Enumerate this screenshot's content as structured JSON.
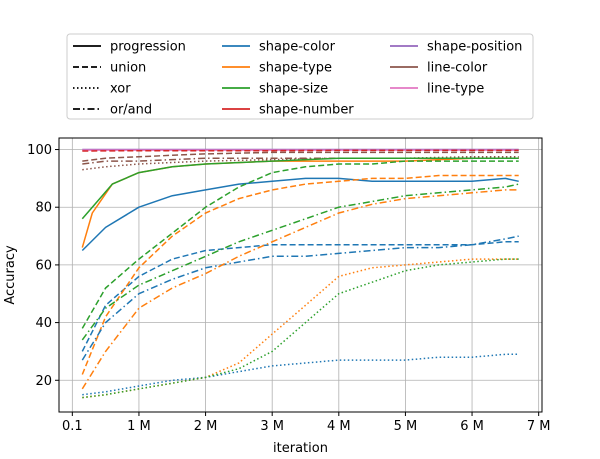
{
  "chart_data": {
    "type": "line",
    "title": "",
    "xlabel": "iteration",
    "ylabel": "Accuracy",
    "xlim": [
      -0.2,
      7.05
    ],
    "ylim": [
      9,
      104
    ],
    "xticks": [
      0,
      1,
      2,
      3,
      4,
      5,
      6,
      7
    ],
    "xtick_labels": [
      "0.1",
      "1 M",
      "2 M",
      "3 M",
      "4 M",
      "5 M",
      "6 M",
      "7 M"
    ],
    "yticks": [
      20,
      40,
      60,
      80,
      100
    ],
    "ytick_labels": [
      "20",
      "40",
      "60",
      "80",
      "100"
    ],
    "grid": true,
    "legend_position": "above-plot",
    "legend_styles": [
      {
        "label": "progression",
        "dash": "solid"
      },
      {
        "label": "union",
        "dash": "dashed"
      },
      {
        "label": "xor",
        "dash": "dotted"
      },
      {
        "label": "or/and",
        "dash": "dashdot"
      }
    ],
    "legend_attributes": [
      {
        "label": "shape-color",
        "color": "#1f77b4"
      },
      {
        "label": "shape-type",
        "color": "#ff7f0e"
      },
      {
        "label": "shape-size",
        "color": "#2ca02c"
      },
      {
        "label": "shape-number",
        "color": "#d62728"
      },
      {
        "label": "shape-position",
        "color": "#9467bd"
      },
      {
        "label": "line-color",
        "color": "#8c564b"
      },
      {
        "label": "line-type",
        "color": "#e377c2"
      }
    ],
    "series": [
      {
        "attribute": "shape-position",
        "style": "solid",
        "color": "#9467bd",
        "x": [
          0.15,
          1,
          2,
          3,
          4,
          5,
          6,
          6.7
        ],
        "y": [
          100,
          100,
          100,
          100,
          100,
          100,
          100,
          100
        ]
      },
      {
        "attribute": "line-type",
        "style": "solid",
        "color": "#e377c2",
        "x": [
          0.15,
          1,
          2,
          3,
          4,
          5,
          6,
          6.7
        ],
        "y": [
          99.8,
          99.8,
          99.8,
          99.8,
          99.8,
          99.8,
          99.8,
          99.8
        ]
      },
      {
        "attribute": "shape-number",
        "style": "dashed",
        "color": "#d62728",
        "x": [
          0.15,
          1,
          2,
          3,
          4,
          5,
          6,
          6.7
        ],
        "y": [
          99.5,
          99.6,
          99.6,
          99.6,
          99.7,
          99.7,
          99.7,
          99.7
        ]
      },
      {
        "attribute": "line-color",
        "style": "dashed",
        "color": "#8c564b",
        "x": [
          0.15,
          0.5,
          1,
          1.5,
          2,
          3,
          4,
          5,
          6,
          6.7
        ],
        "y": [
          96,
          97,
          97.5,
          98,
          98.5,
          99,
          99,
          99,
          99,
          99
        ]
      },
      {
        "attribute": "line-color",
        "style": "dotted",
        "color": "#8c564b",
        "x": [
          0.15,
          0.5,
          1,
          1.5,
          2,
          3,
          4,
          5,
          6,
          6.7
        ],
        "y": [
          93,
          94,
          95,
          95.5,
          96,
          96.5,
          97,
          97,
          97.5,
          97.5
        ]
      },
      {
        "attribute": "line-color",
        "style": "dashdot",
        "color": "#8c564b",
        "x": [
          0.15,
          0.5,
          1,
          1.5,
          2,
          3,
          4,
          5,
          6,
          6.7
        ],
        "y": [
          95,
          96,
          96,
          96.5,
          97,
          97,
          97,
          97,
          97,
          97
        ]
      },
      {
        "attribute": "shape-color",
        "style": "solid",
        "color": "#1f77b4",
        "x": [
          0.15,
          0.5,
          1,
          1.5,
          2,
          2.5,
          3,
          3.5,
          4,
          4.5,
          5,
          5.5,
          6,
          6.5,
          6.7
        ],
        "y": [
          65,
          73,
          80,
          84,
          86,
          88,
          89,
          90,
          90,
          89,
          89,
          89,
          89,
          90,
          89
        ]
      },
      {
        "attribute": "shape-type",
        "style": "solid",
        "color": "#ff7f0e",
        "x": [
          0.15,
          0.3,
          0.6,
          1,
          1.5,
          2,
          3,
          4,
          5,
          6,
          6.7
        ],
        "y": [
          66,
          78,
          88,
          92,
          94,
          95,
          96,
          96,
          96,
          97,
          97
        ]
      },
      {
        "attribute": "shape-size",
        "style": "solid",
        "color": "#2ca02c",
        "x": [
          0.15,
          0.3,
          0.6,
          1,
          1.5,
          2,
          3,
          4,
          5,
          6,
          6.7
        ],
        "y": [
          76,
          80,
          88,
          92,
          94,
          95,
          96,
          97,
          97,
          97,
          97
        ]
      },
      {
        "attribute": "shape-color",
        "style": "dashed",
        "color": "#1f77b4",
        "x": [
          0.15,
          0.5,
          1,
          1.5,
          2,
          2.5,
          3,
          3.5,
          4,
          4.5,
          5,
          5.5,
          6,
          6.5,
          6.7
        ],
        "y": [
          30,
          46,
          56,
          62,
          65,
          66,
          67,
          67,
          67,
          67,
          67,
          67,
          67,
          68,
          68
        ]
      },
      {
        "attribute": "shape-type",
        "style": "dashed",
        "color": "#ff7f0e",
        "x": [
          0.15,
          0.5,
          1,
          1.5,
          2,
          2.5,
          3,
          3.5,
          4,
          4.5,
          5,
          5.5,
          6,
          6.5,
          6.7
        ],
        "y": [
          22,
          42,
          59,
          70,
          78,
          83,
          86,
          88,
          89,
          90,
          90,
          91,
          91,
          91,
          91
        ]
      },
      {
        "attribute": "shape-size",
        "style": "dashed",
        "color": "#2ca02c",
        "x": [
          0.15,
          0.5,
          1,
          1.5,
          2,
          2.5,
          3,
          3.5,
          4,
          4.5,
          5,
          5.5,
          6,
          6.5,
          6.7
        ],
        "y": [
          38,
          52,
          62,
          71,
          80,
          87,
          92,
          94,
          95,
          95,
          96,
          96,
          96,
          96,
          96
        ]
      },
      {
        "attribute": "shape-color",
        "style": "dotted",
        "color": "#1f77b4",
        "x": [
          0.15,
          0.5,
          1,
          1.5,
          2,
          2.5,
          3,
          3.5,
          4,
          4.5,
          5,
          5.5,
          6,
          6.5,
          6.7
        ],
        "y": [
          15,
          16,
          18,
          20,
          21,
          23,
          25,
          26,
          27,
          27,
          27,
          28,
          28,
          29,
          29
        ]
      },
      {
        "attribute": "shape-type",
        "style": "dotted",
        "color": "#ff7f0e",
        "x": [
          0.15,
          0.5,
          1,
          1.5,
          2,
          2.5,
          3,
          3.5,
          4,
          4.5,
          5,
          5.5,
          6,
          6.5,
          6.7
        ],
        "y": [
          14,
          15,
          17,
          19,
          21,
          26,
          36,
          46,
          56,
          59,
          60,
          61,
          62,
          62,
          62
        ]
      },
      {
        "attribute": "shape-size",
        "style": "dotted",
        "color": "#2ca02c",
        "x": [
          0.15,
          0.5,
          1,
          1.5,
          2,
          2.5,
          3,
          3.5,
          4,
          4.5,
          5,
          5.5,
          6,
          6.5,
          6.7
        ],
        "y": [
          14,
          15,
          17,
          19,
          21,
          24,
          30,
          40,
          50,
          54,
          58,
          60,
          61,
          62,
          62
        ]
      },
      {
        "attribute": "shape-color",
        "style": "dashdot",
        "color": "#1f77b4",
        "x": [
          0.15,
          0.5,
          1,
          1.5,
          2,
          2.5,
          3,
          3.5,
          4,
          4.5,
          5,
          5.5,
          6,
          6.5,
          6.7
        ],
        "y": [
          27,
          40,
          50,
          55,
          59,
          61,
          63,
          63,
          64,
          65,
          66,
          66,
          67,
          69,
          70
        ]
      },
      {
        "attribute": "shape-type",
        "style": "dashdot",
        "color": "#ff7f0e",
        "x": [
          0.15,
          0.5,
          1,
          1.5,
          2,
          2.5,
          3,
          3.5,
          4,
          4.5,
          5,
          5.5,
          6,
          6.5,
          6.7
        ],
        "y": [
          17,
          30,
          45,
          52,
          57,
          63,
          68,
          73,
          78,
          81,
          83,
          84,
          85,
          86,
          86
        ]
      },
      {
        "attribute": "shape-size",
        "style": "dashdot",
        "color": "#2ca02c",
        "x": [
          0.15,
          0.5,
          1,
          1.5,
          2,
          2.5,
          3,
          3.5,
          4,
          4.5,
          5,
          5.5,
          6,
          6.5,
          6.7
        ],
        "y": [
          34,
          45,
          53,
          58,
          63,
          68,
          72,
          76,
          80,
          82,
          84,
          85,
          86,
          87,
          88
        ]
      }
    ]
  }
}
